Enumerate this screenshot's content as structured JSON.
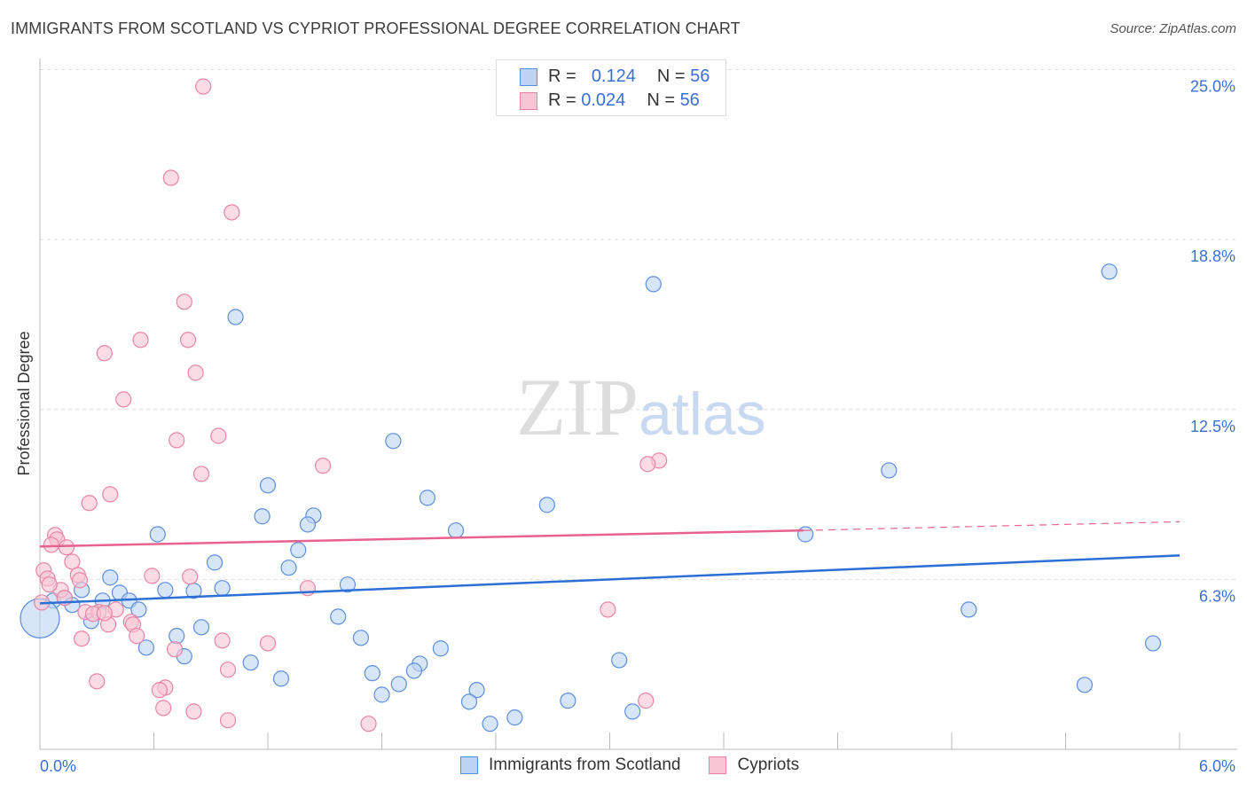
{
  "title": "IMMIGRANTS FROM SCOTLAND VS CYPRIOT PROFESSIONAL DEGREE CORRELATION CHART",
  "source": "Source: ZipAtlas.com",
  "watermark": "ZIPatlas",
  "colors": {
    "blue": "#5b8fde",
    "blue_fill": "#bcd3f3",
    "blue_line": "#2c6fd6",
    "pink": "#ea84a4",
    "pink_fill": "#f8c5d4",
    "pink_line": "#e8628e",
    "tick_text": "#3a6fd8"
  },
  "legend": {
    "rows": [
      {
        "r_label": "R =",
        "r_value": "0.124",
        "n_label": "N =",
        "n_value": "56"
      },
      {
        "r_label": "R =",
        "r_value": "0.024",
        "n_label": "N =",
        "n_value": "56"
      }
    ]
  },
  "chart_data": {
    "type": "scatter",
    "title": "IMMIGRANTS FROM SCOTLAND VS CYPRIOT PROFESSIONAL DEGREE CORRELATION CHART",
    "xlabel": "",
    "ylabel": "Professional Degree",
    "xlim": [
      0,
      6.0
    ],
    "ylim": [
      0,
      25.0
    ],
    "x_tick_labels": [
      "0.0%",
      "6.0%"
    ],
    "y_ticks": [
      6.25,
      12.5,
      18.75,
      25.0
    ],
    "y_tick_labels": [
      "6.3%",
      "12.5%",
      "18.8%",
      "25.0%"
    ],
    "grid": true,
    "legend_position": "top-center",
    "series": [
      {
        "name": "Immigrants from Scotland",
        "color": "blue",
        "trend": {
          "x": [
            0,
            6.0
          ],
          "y": [
            5.37,
            7.13
          ]
        },
        "points": [
          [
            1.03,
            15.9
          ],
          [
            3.23,
            17.11
          ],
          [
            5.63,
            17.57
          ],
          [
            1.86,
            11.34
          ],
          [
            4.47,
            10.26
          ],
          [
            1.2,
            9.71
          ],
          [
            2.04,
            9.25
          ],
          [
            2.67,
            8.99
          ],
          [
            1.17,
            8.57
          ],
          [
            1.44,
            8.6
          ],
          [
            1.41,
            8.27
          ],
          [
            2.19,
            8.05
          ],
          [
            0.62,
            7.91
          ],
          [
            4.03,
            7.91
          ],
          [
            1.36,
            7.33
          ],
          [
            0.92,
            6.87
          ],
          [
            1.31,
            6.68
          ],
          [
            0.37,
            6.32
          ],
          [
            1.62,
            6.06
          ],
          [
            0.96,
            5.93
          ],
          [
            0.22,
            5.86
          ],
          [
            0.42,
            5.76
          ],
          [
            0.66,
            5.86
          ],
          [
            0.81,
            5.83
          ],
          [
            0.07,
            5.47
          ],
          [
            0.13,
            5.57
          ],
          [
            0.17,
            5.31
          ],
          [
            0.33,
            5.47
          ],
          [
            0.47,
            5.47
          ],
          [
            0.52,
            5.14
          ],
          [
            0.27,
            4.72
          ],
          [
            4.89,
            5.14
          ],
          [
            1.57,
            4.88
          ],
          [
            0.85,
            4.49
          ],
          [
            0.72,
            4.17
          ],
          [
            1.69,
            4.1
          ],
          [
            5.86,
            3.9
          ],
          [
            0.56,
            3.74
          ],
          [
            2.11,
            3.71
          ],
          [
            0.76,
            3.42
          ],
          [
            3.05,
            3.28
          ],
          [
            1.11,
            3.19
          ],
          [
            2.0,
            3.15
          ],
          [
            1.97,
            2.89
          ],
          [
            1.75,
            2.8
          ],
          [
            1.27,
            2.6
          ],
          [
            1.89,
            2.4
          ],
          [
            5.5,
            2.37
          ],
          [
            2.3,
            2.18
          ],
          [
            1.8,
            2.01
          ],
          [
            2.26,
            1.75
          ],
          [
            2.78,
            1.79
          ],
          [
            2.5,
            1.17
          ],
          [
            3.12,
            1.39
          ],
          [
            2.37,
            0.94
          ],
          [
            0.0,
            4.82,
            "large"
          ]
        ]
      },
      {
        "name": "Cypriots",
        "color": "pink",
        "trend": {
          "x": [
            0,
            4.02,
            6.0
          ],
          "y": [
            7.46,
            8.05,
            8.37
          ],
          "dashed_after": 4.02
        },
        "points": [
          [
            0.86,
            24.38
          ],
          [
            0.69,
            21.02
          ],
          [
            1.01,
            19.75
          ],
          [
            0.76,
            16.46
          ],
          [
            0.53,
            15.06
          ],
          [
            0.78,
            15.06
          ],
          [
            0.34,
            14.57
          ],
          [
            0.82,
            13.85
          ],
          [
            0.44,
            12.87
          ],
          [
            0.72,
            11.37
          ],
          [
            0.94,
            11.53
          ],
          [
            1.49,
            10.43
          ],
          [
            3.26,
            10.62
          ],
          [
            3.2,
            10.49
          ],
          [
            0.85,
            10.13
          ],
          [
            0.37,
            9.38
          ],
          [
            0.26,
            9.06
          ],
          [
            0.08,
            7.88
          ],
          [
            0.09,
            7.72
          ],
          [
            0.06,
            7.52
          ],
          [
            0.14,
            7.43
          ],
          [
            0.17,
            6.9
          ],
          [
            0.02,
            6.58
          ],
          [
            0.04,
            6.28
          ],
          [
            0.2,
            6.41
          ],
          [
            0.59,
            6.38
          ],
          [
            0.79,
            6.35
          ],
          [
            0.21,
            6.22
          ],
          [
            0.11,
            5.86
          ],
          [
            1.41,
            5.93
          ],
          [
            0.13,
            5.57
          ],
          [
            0.24,
            5.05
          ],
          [
            0.31,
            5.05
          ],
          [
            0.4,
            5.14
          ],
          [
            2.99,
            5.14
          ],
          [
            0.28,
            4.98
          ],
          [
            0.36,
            4.59
          ],
          [
            0.48,
            4.69
          ],
          [
            0.49,
            4.59
          ],
          [
            0.51,
            4.17
          ],
          [
            0.22,
            4.07
          ],
          [
            0.96,
            4.0
          ],
          [
            1.2,
            3.9
          ],
          [
            0.71,
            3.68
          ],
          [
            0.99,
            2.93
          ],
          [
            0.3,
            2.5
          ],
          [
            0.66,
            2.27
          ],
          [
            0.63,
            2.18
          ],
          [
            3.19,
            1.79
          ],
          [
            0.65,
            1.52
          ],
          [
            0.81,
            1.39
          ],
          [
            0.99,
            1.07
          ],
          [
            1.73,
            0.94
          ],
          [
            0.01,
            5.4
          ],
          [
            0.34,
            5.01
          ],
          [
            0.05,
            6.06
          ]
        ]
      }
    ]
  }
}
